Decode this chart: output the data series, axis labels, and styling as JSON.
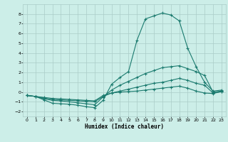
{
  "title": "",
  "xlabel": "Humidex (Indice chaleur)",
  "xlim": [
    -0.5,
    23.5
  ],
  "ylim": [
    -2.5,
    9.0
  ],
  "yticks": [
    -2,
    -1,
    0,
    1,
    2,
    3,
    4,
    5,
    6,
    7,
    8
  ],
  "xticks": [
    0,
    1,
    2,
    3,
    4,
    5,
    6,
    7,
    8,
    9,
    10,
    11,
    12,
    13,
    14,
    15,
    16,
    17,
    18,
    19,
    20,
    21,
    22,
    23
  ],
  "bg_color": "#cceee8",
  "grid_color": "#aaccc8",
  "line_color": "#1a7a6e",
  "line1_x": [
    0,
    1,
    2,
    3,
    4,
    5,
    6,
    7,
    8,
    9,
    10,
    11,
    12,
    13,
    14,
    15,
    16,
    17,
    18,
    19,
    20,
    21,
    22,
    23
  ],
  "line1_y": [
    -0.35,
    -0.45,
    -0.8,
    -1.15,
    -1.2,
    -1.25,
    -1.35,
    -1.5,
    -1.6,
    -0.85,
    0.8,
    1.5,
    2.1,
    5.3,
    7.5,
    7.8,
    8.1,
    7.9,
    7.3,
    4.5,
    2.6,
    1.0,
    0.1,
    0.2
  ],
  "line2_x": [
    0,
    1,
    2,
    3,
    4,
    5,
    6,
    7,
    8,
    9,
    10,
    11,
    12,
    13,
    14,
    15,
    16,
    17,
    18,
    19,
    20,
    21,
    22,
    23
  ],
  "line2_y": [
    -0.35,
    -0.45,
    -0.7,
    -0.85,
    -0.9,
    -1.0,
    -1.1,
    -1.2,
    -1.3,
    -0.5,
    0.2,
    0.7,
    1.1,
    1.5,
    1.9,
    2.2,
    2.5,
    2.6,
    2.7,
    2.4,
    2.1,
    1.7,
    0.0,
    0.1
  ],
  "line3_x": [
    0,
    1,
    2,
    3,
    4,
    5,
    6,
    7,
    8,
    9,
    10,
    11,
    12,
    13,
    14,
    15,
    16,
    17,
    18,
    19,
    20,
    21,
    22,
    23
  ],
  "line3_y": [
    -0.35,
    -0.45,
    -0.6,
    -0.75,
    -0.8,
    -0.85,
    -0.9,
    -0.95,
    -1.0,
    -0.45,
    -0.1,
    0.1,
    0.3,
    0.5,
    0.7,
    0.9,
    1.0,
    1.2,
    1.4,
    1.2,
    0.9,
    0.7,
    -0.1,
    0.05
  ],
  "line4_x": [
    0,
    1,
    2,
    3,
    4,
    5,
    6,
    7,
    8,
    9,
    10,
    11,
    12,
    13,
    14,
    15,
    16,
    17,
    18,
    19,
    20,
    21,
    22,
    23
  ],
  "line4_y": [
    -0.35,
    -0.45,
    -0.55,
    -0.65,
    -0.7,
    -0.75,
    -0.8,
    -0.85,
    -0.9,
    -0.35,
    -0.1,
    0.0,
    0.05,
    0.1,
    0.2,
    0.3,
    0.4,
    0.5,
    0.6,
    0.4,
    0.1,
    -0.1,
    -0.15,
    0.05
  ]
}
